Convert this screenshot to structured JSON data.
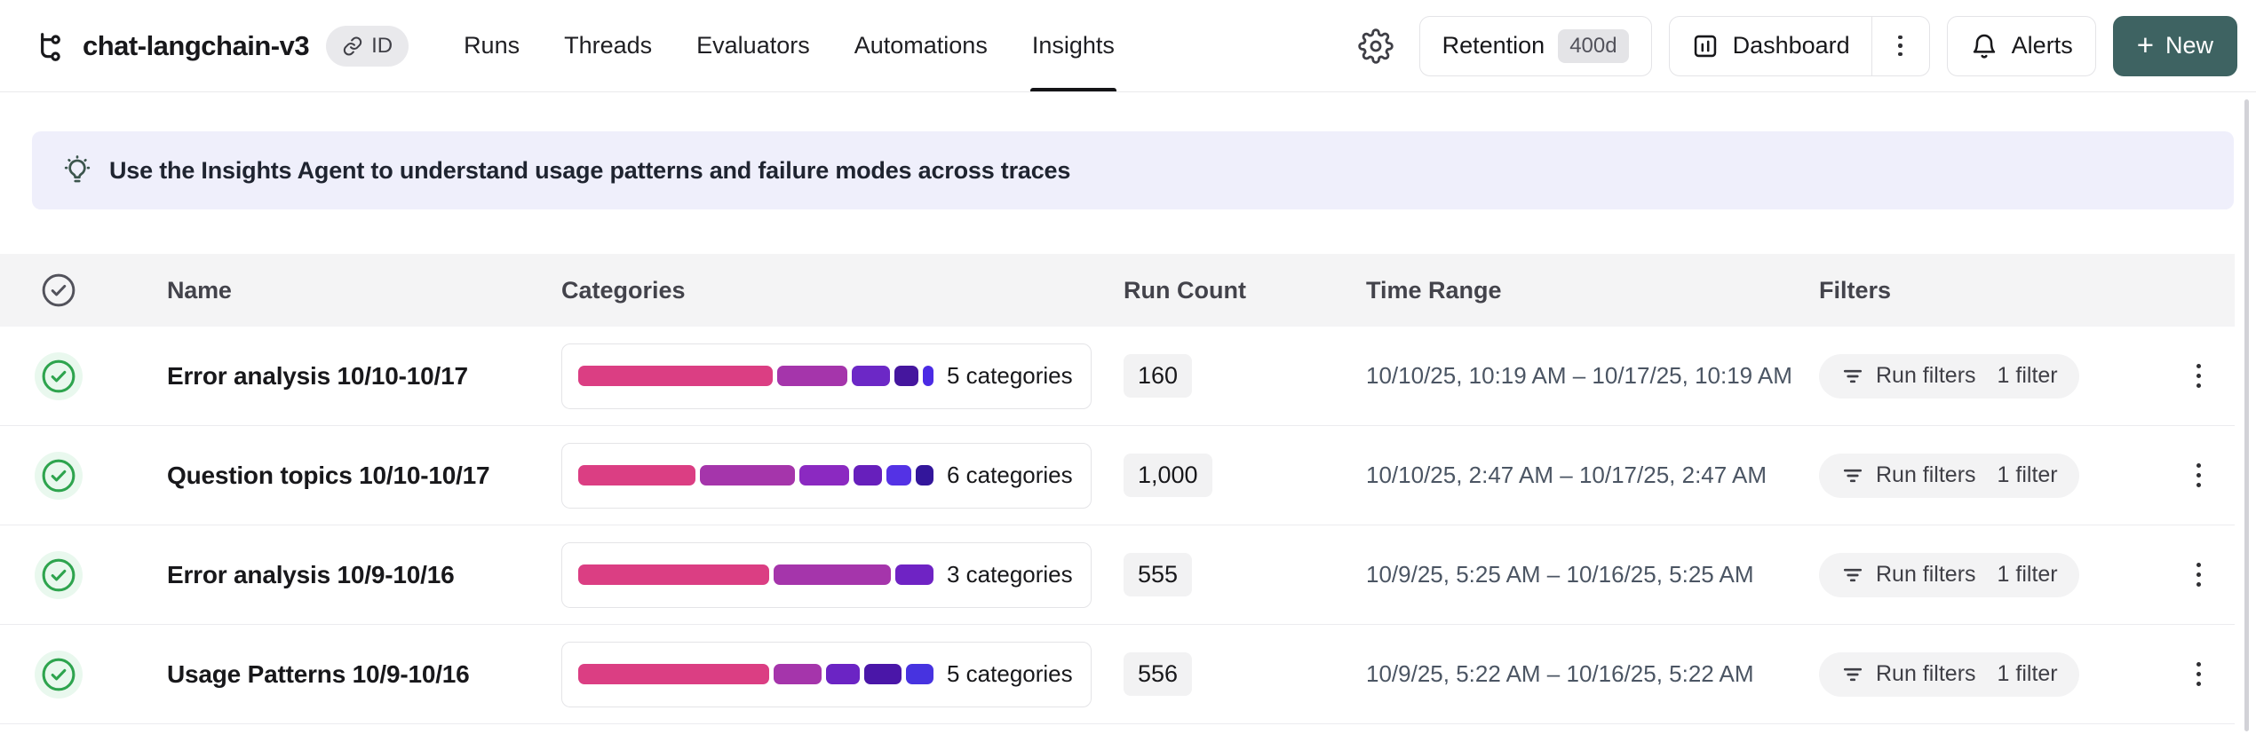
{
  "header": {
    "title": "chat-langchain-v3",
    "id_badge": "ID",
    "nav": [
      {
        "label": "Runs",
        "active": false
      },
      {
        "label": "Threads",
        "active": false
      },
      {
        "label": "Evaluators",
        "active": false
      },
      {
        "label": "Automations",
        "active": false
      },
      {
        "label": "Insights",
        "active": true
      }
    ],
    "retention": {
      "label": "Retention",
      "value": "400d"
    },
    "dashboard_label": "Dashboard",
    "alerts_label": "Alerts",
    "new_button": {
      "plus": "+",
      "label": "New"
    }
  },
  "banner": {
    "text": "Use the Insights Agent to understand usage patterns and failure modes across traces"
  },
  "table": {
    "headers": {
      "name": "Name",
      "categories": "Categories",
      "run_count": "Run Count",
      "time_range": "Time Range",
      "filters": "Filters"
    },
    "rows": [
      {
        "name": "Error analysis 10/10-10/17",
        "categories_label": "5 categories",
        "segments": [
          {
            "color": "#DB3E83",
            "pct": 56
          },
          {
            "color": "#A535AB",
            "pct": 20
          },
          {
            "color": "#6C28C6",
            "pct": 11
          },
          {
            "color": "#45169E",
            "pct": 7
          },
          {
            "color": "#4B2BE4",
            "pct": 3
          }
        ],
        "run_count": "160",
        "time_range": "10/10/25, 10:19 AM – 10/17/25, 10:19 AM",
        "filter_label": "Run filters",
        "filter_count": "1 filter"
      },
      {
        "name": "Question topics 10/10-10/17",
        "categories_label": "6 categories",
        "segments": [
          {
            "color": "#DB3E83",
            "pct": 33
          },
          {
            "color": "#A535AB",
            "pct": 27
          },
          {
            "color": "#8B29C1",
            "pct": 14
          },
          {
            "color": "#671FBC",
            "pct": 8
          },
          {
            "color": "#5432E5",
            "pct": 7
          },
          {
            "color": "#33169B",
            "pct": 5
          }
        ],
        "run_count": "1,000",
        "time_range": "10/10/25, 2:47 AM – 10/17/25, 2:47 AM",
        "filter_label": "Run filters",
        "filter_count": "1 filter"
      },
      {
        "name": "Error analysis 10/9-10/16",
        "categories_label": "3 categories",
        "segments": [
          {
            "color": "#DB3E83",
            "pct": 55
          },
          {
            "color": "#A535AB",
            "pct": 34
          },
          {
            "color": "#6F23C4",
            "pct": 11
          }
        ],
        "run_count": "555",
        "time_range": "10/9/25, 5:25 AM – 10/16/25, 5:25 AM",
        "filter_label": "Run filters",
        "filter_count": "1 filter"
      },
      {
        "name": "Usage Patterns 10/9-10/16",
        "categories_label": "5 categories",
        "segments": [
          {
            "color": "#DB3E83",
            "pct": 56
          },
          {
            "color": "#A535AB",
            "pct": 14
          },
          {
            "color": "#6B24C4",
            "pct": 10
          },
          {
            "color": "#4A16A8",
            "pct": 11
          },
          {
            "color": "#4733E0",
            "pct": 8
          }
        ],
        "run_count": "556",
        "time_range": "10/9/25, 5:22 AM – 10/16/25, 5:22 AM",
        "filter_label": "Run filters",
        "filter_count": "1 filter"
      }
    ]
  },
  "colors": {
    "new_button": "#3E6362",
    "banner_bg": "#EFEFFB",
    "success_check": "#2EA44E"
  }
}
